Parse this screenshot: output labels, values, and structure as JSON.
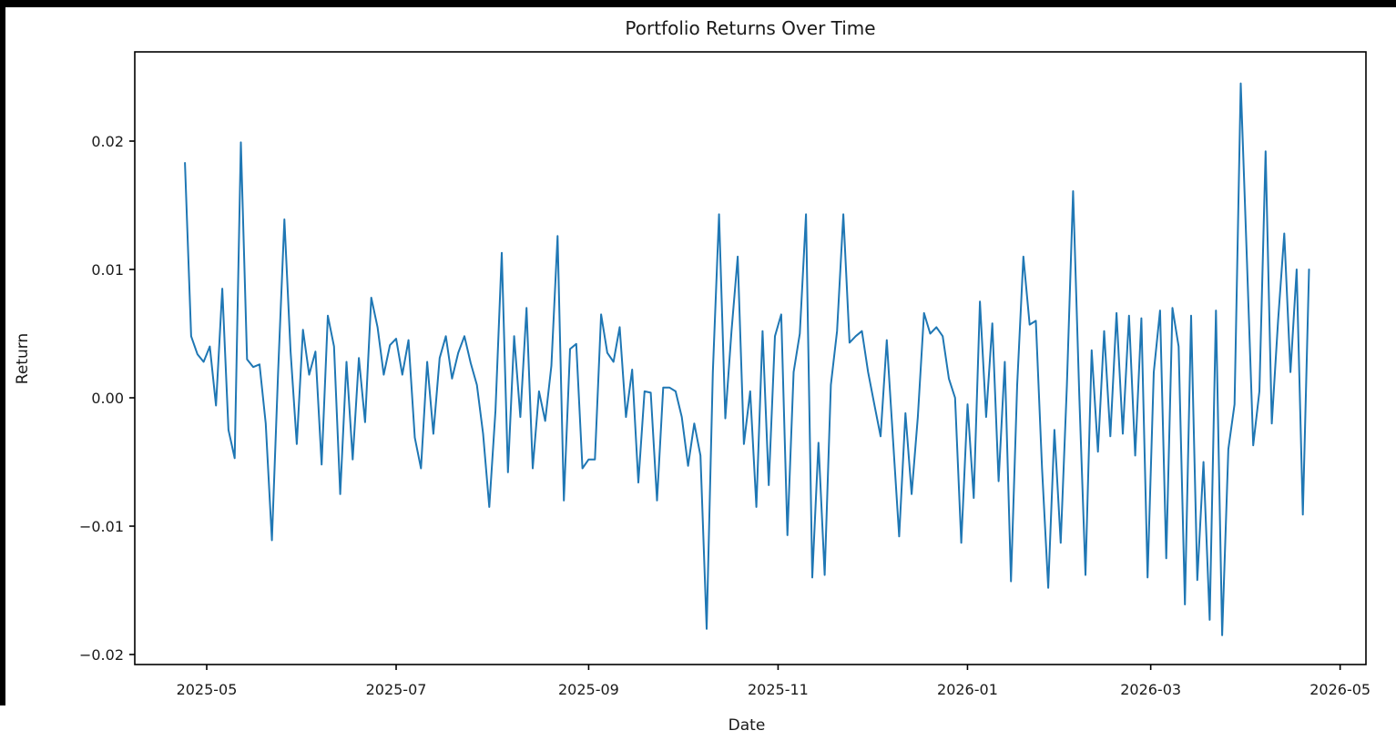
{
  "figure": {
    "title": "Portfolio Returns Over Time",
    "xlabel": "Date",
    "ylabel": "Return"
  },
  "chart_data": {
    "type": "line",
    "title": "Portfolio Returns Over Time",
    "xlabel": "Date",
    "ylabel": "Return",
    "legend": "none",
    "grid": false,
    "line_color": "#1f77b4",
    "axis_color": "#000000",
    "background_color": "#ffffff",
    "x_tick_labels": [
      "2025-05",
      "2025-07",
      "2025-09",
      "2025-11",
      "2026-01",
      "2026-03",
      "2026-05"
    ],
    "y_tick_labels": [
      "0.02",
      "0.01",
      "0.00",
      "−0.01",
      "−0.02"
    ],
    "y_tick_values": [
      0.02,
      0.01,
      0.0,
      -0.01,
      -0.02
    ],
    "ylim": [
      -0.0207,
      0.0269
    ],
    "x": [
      "2025-04-24",
      "2025-04-26",
      "2025-04-28",
      "2025-04-30",
      "2025-05-02",
      "2025-05-04",
      "2025-05-06",
      "2025-05-08",
      "2025-05-10",
      "2025-05-12",
      "2025-05-14",
      "2025-05-16",
      "2025-05-18",
      "2025-05-20",
      "2025-05-22",
      "2025-05-24",
      "2025-05-26",
      "2025-05-28",
      "2025-05-30",
      "2025-06-01",
      "2025-06-03",
      "2025-06-05",
      "2025-06-07",
      "2025-06-09",
      "2025-06-11",
      "2025-06-13",
      "2025-06-15",
      "2025-06-17",
      "2025-06-19",
      "2025-06-21",
      "2025-06-23",
      "2025-06-25",
      "2025-06-27",
      "2025-06-29",
      "2025-07-01",
      "2025-07-03",
      "2025-07-05",
      "2025-07-07",
      "2025-07-09",
      "2025-07-11",
      "2025-07-13",
      "2025-07-15",
      "2025-07-17",
      "2025-07-19",
      "2025-07-21",
      "2025-07-23",
      "2025-07-25",
      "2025-07-27",
      "2025-07-29",
      "2025-07-31",
      "2025-08-02",
      "2025-08-04",
      "2025-08-06",
      "2025-08-08",
      "2025-08-10",
      "2025-08-12",
      "2025-08-14",
      "2025-08-16",
      "2025-08-18",
      "2025-08-20",
      "2025-08-22",
      "2025-08-24",
      "2025-08-26",
      "2025-08-28",
      "2025-08-30",
      "2025-09-01",
      "2025-09-03",
      "2025-09-05",
      "2025-09-07",
      "2025-09-09",
      "2025-09-11",
      "2025-09-13",
      "2025-09-15",
      "2025-09-17",
      "2025-09-19",
      "2025-09-21",
      "2025-09-23",
      "2025-09-25",
      "2025-09-27",
      "2025-09-29",
      "2025-10-01",
      "2025-10-03",
      "2025-10-05",
      "2025-10-07",
      "2025-10-09",
      "2025-10-11",
      "2025-10-13",
      "2025-10-15",
      "2025-10-17",
      "2025-10-19",
      "2025-10-21",
      "2025-10-23",
      "2025-10-25",
      "2025-10-27",
      "2025-10-29",
      "2025-10-31",
      "2025-11-02",
      "2025-11-04",
      "2025-11-06",
      "2025-11-08",
      "2025-11-10",
      "2025-11-12",
      "2025-11-14",
      "2025-11-16",
      "2025-11-18",
      "2025-11-20",
      "2025-11-22",
      "2025-11-24",
      "2025-11-26",
      "2025-11-28",
      "2025-11-30",
      "2025-12-02",
      "2025-12-04",
      "2025-12-06",
      "2025-12-08",
      "2025-12-10",
      "2025-12-12",
      "2025-12-14",
      "2025-12-16",
      "2025-12-18",
      "2025-12-20",
      "2025-12-22",
      "2025-12-24",
      "2025-12-26",
      "2025-12-28",
      "2025-12-30",
      "2026-01-01",
      "2026-01-03",
      "2026-01-05",
      "2026-01-07",
      "2026-01-09",
      "2026-01-11",
      "2026-01-13",
      "2026-01-15",
      "2026-01-17",
      "2026-01-19",
      "2026-01-21",
      "2026-01-23",
      "2026-01-25",
      "2026-01-27",
      "2026-01-29",
      "2026-01-31",
      "2026-02-02",
      "2026-02-04",
      "2026-02-06",
      "2026-02-08",
      "2026-02-10",
      "2026-02-12",
      "2026-02-14",
      "2026-02-16",
      "2026-02-18",
      "2026-02-20",
      "2026-02-22",
      "2026-02-24",
      "2026-02-26",
      "2026-02-28",
      "2026-03-02",
      "2026-03-04",
      "2026-03-06",
      "2026-03-08",
      "2026-03-10",
      "2026-03-12",
      "2026-03-14",
      "2026-03-16",
      "2026-03-18",
      "2026-03-20",
      "2026-03-22",
      "2026-03-24",
      "2026-03-26",
      "2026-03-28",
      "2026-03-30",
      "2026-04-01",
      "2026-04-03",
      "2026-04-05",
      "2026-04-07",
      "2026-04-09",
      "2026-04-11",
      "2026-04-13",
      "2026-04-15",
      "2026-04-17",
      "2026-04-19",
      "2026-04-21"
    ],
    "values": [
      0.0183,
      0.0048,
      0.0034,
      0.0028,
      0.004,
      -0.0006,
      0.0085,
      -0.0025,
      -0.0047,
      0.0199,
      0.003,
      0.0024,
      0.0026,
      -0.002,
      -0.0111,
      0.002,
      0.0139,
      0.0036,
      -0.0036,
      0.0053,
      0.0018,
      0.0036,
      -0.0052,
      0.0064,
      0.004,
      -0.0075,
      0.0028,
      -0.0048,
      0.0031,
      -0.0019,
      0.0078,
      0.0055,
      0.0018,
      0.0041,
      0.0046,
      0.0018,
      0.0045,
      -0.0031,
      -0.0055,
      0.0028,
      -0.0028,
      0.0031,
      0.0048,
      0.0015,
      0.0035,
      0.0048,
      0.0027,
      0.001,
      -0.0028,
      -0.0085,
      -0.001,
      0.0113,
      -0.0058,
      0.0048,
      -0.0015,
      0.007,
      -0.0055,
      0.0005,
      -0.0018,
      0.0025,
      0.0126,
      -0.008,
      0.0038,
      0.0042,
      -0.0055,
      -0.0048,
      -0.0048,
      0.0065,
      0.0035,
      0.0028,
      0.0055,
      -0.0015,
      0.0022,
      -0.0066,
      0.0005,
      0.0004,
      -0.008,
      0.0008,
      0.0008,
      0.0005,
      -0.0015,
      -0.0053,
      -0.002,
      -0.0045,
      -0.018,
      0.002,
      0.0143,
      -0.0016,
      0.0052,
      0.011,
      -0.0036,
      0.0005,
      -0.0085,
      0.0052,
      -0.0068,
      0.0048,
      0.0065,
      -0.0107,
      0.002,
      0.005,
      0.0143,
      -0.014,
      -0.0035,
      -0.0138,
      0.001,
      0.0052,
      0.0143,
      0.0043,
      0.0048,
      0.0052,
      0.002,
      -0.0005,
      -0.003,
      0.0045,
      -0.0032,
      -0.0108,
      -0.0012,
      -0.0075,
      -0.0015,
      0.0066,
      0.005,
      0.0055,
      0.0048,
      0.0015,
      0.0,
      -0.0113,
      -0.0005,
      -0.0078,
      0.0075,
      -0.0015,
      0.0058,
      -0.0065,
      0.0028,
      -0.0143,
      0.001,
      0.011,
      0.0057,
      0.006,
      -0.0055,
      -0.0148,
      -0.0025,
      -0.0113,
      0.001,
      0.0161,
      0.0002,
      -0.0138,
      0.0037,
      -0.0042,
      0.0052,
      -0.003,
      0.0066,
      -0.0028,
      0.0064,
      -0.0045,
      0.0062,
      -0.014,
      0.002,
      0.0068,
      -0.0125,
      0.007,
      0.004,
      -0.0161,
      0.0064,
      -0.0142,
      -0.005,
      -0.0173,
      0.0068,
      -0.0185,
      -0.004,
      -0.0005,
      0.0245,
      0.0105,
      -0.0037,
      0.0005,
      0.0192,
      -0.002,
      0.006,
      0.0128,
      0.002,
      0.01,
      -0.0091,
      0.01
    ]
  }
}
